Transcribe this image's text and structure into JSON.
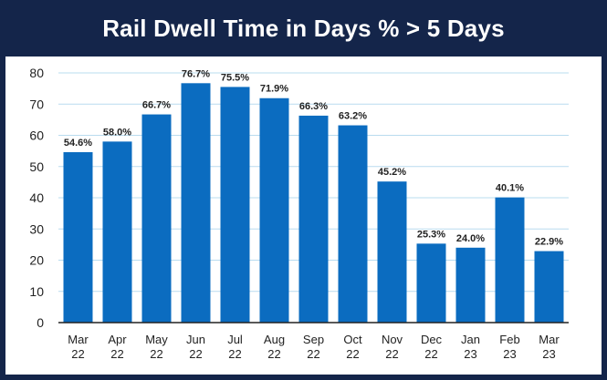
{
  "chart_data": {
    "type": "bar",
    "title": "Rail Dwell Time in Days % > 5 Days",
    "categories": [
      [
        "Mar",
        "22"
      ],
      [
        "Apr",
        "22"
      ],
      [
        "May",
        "22"
      ],
      [
        "Jun",
        "22"
      ],
      [
        "Jul",
        "22"
      ],
      [
        "Aug",
        "22"
      ],
      [
        "Sep",
        "22"
      ],
      [
        "Oct",
        "22"
      ],
      [
        "Nov",
        "22"
      ],
      [
        "Dec",
        "22"
      ],
      [
        "Jan",
        "23"
      ],
      [
        "Feb",
        "23"
      ],
      [
        "Mar",
        "23"
      ]
    ],
    "values": [
      54.6,
      58.0,
      66.7,
      76.7,
      75.5,
      71.9,
      66.3,
      63.2,
      45.2,
      25.3,
      24.0,
      40.1,
      22.9
    ],
    "data_labels": [
      "54.6%",
      "58.0%",
      "66.7%",
      "76.7%",
      "75.5%",
      "71.9%",
      "66.3%",
      "63.2%",
      "45.2%",
      "25.3%",
      "24.0%",
      "40.1%",
      "22.9%"
    ],
    "yticks": [
      "0",
      "10",
      "20",
      "30",
      "40",
      "50",
      "60",
      "70",
      "80"
    ],
    "ylim": [
      0,
      80
    ],
    "grid": true,
    "xlabel": "",
    "ylabel": "",
    "colors": {
      "bar": "#0b6cc0",
      "title_bg": "#14254a",
      "grid": "#b9dcef",
      "axis": "#222222"
    }
  }
}
